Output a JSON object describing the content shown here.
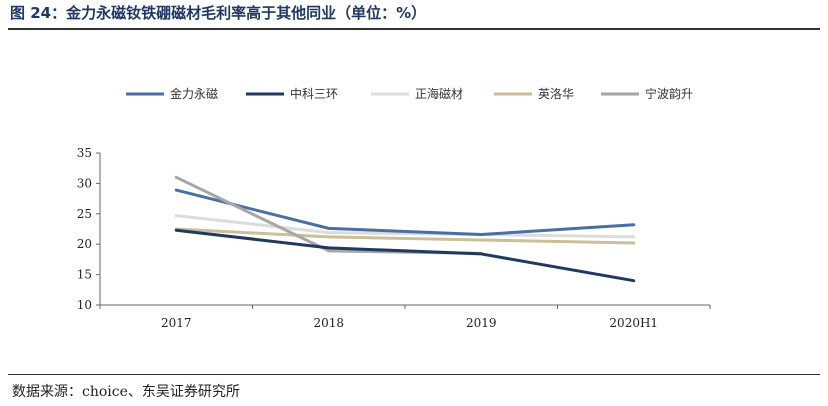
{
  "title": "图 24：金力永磁钕铁硼磁材毛利率高于其他同业（单位：%）",
  "source": "数据来源：choice、东吴证券研究所",
  "chart_data": {
    "type": "line",
    "categories": [
      "2017",
      "2018",
      "2019",
      "2020H1"
    ],
    "ylim": [
      10,
      35
    ],
    "yticks": [
      10,
      15,
      20,
      25,
      30,
      35
    ],
    "legend_position": "top",
    "grid": false,
    "series": [
      {
        "name": "金力永磁",
        "color": "#4a6fa5",
        "values": [
          28.9,
          22.6,
          21.6,
          23.2
        ]
      },
      {
        "name": "中科三环",
        "color": "#1f3a5f",
        "values": [
          22.3,
          19.4,
          18.4,
          14.0
        ]
      },
      {
        "name": "正海磁材",
        "color": "#dcdcdc",
        "values": [
          24.7,
          21.9,
          21.6,
          21.2
        ]
      },
      {
        "name": "英洛华",
        "color": "#c9c097",
        "values": [
          22.5,
          21.2,
          20.7,
          20.2
        ]
      },
      {
        "name": "宁波韵升",
        "color": "#a6a6a6",
        "values": [
          31.0,
          18.9,
          18.5,
          null
        ]
      }
    ]
  }
}
